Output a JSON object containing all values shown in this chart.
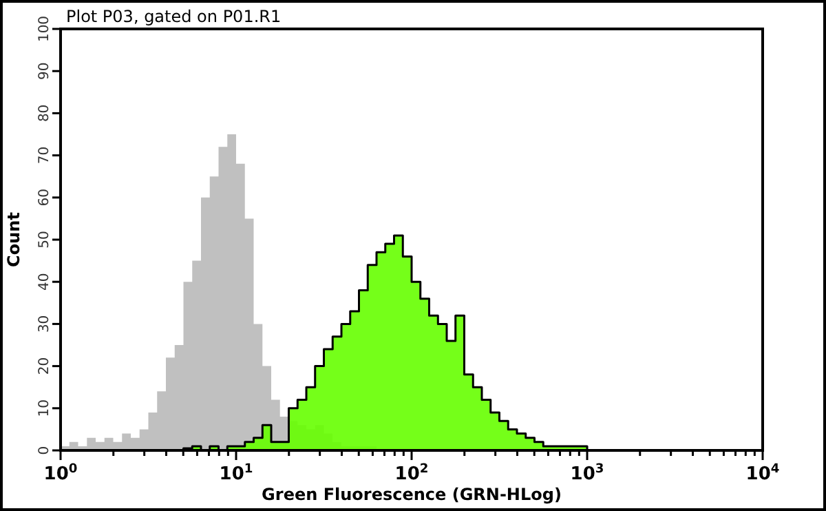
{
  "chart_data": {
    "type": "histogram",
    "title": "Plot P03, gated on P01.R1",
    "xlabel": "Green Fluorescence (GRN-HLog)",
    "ylabel": "Count",
    "log": "x",
    "bins": [
      1,
      1.122,
      1.259,
      1.413,
      1.585,
      1.778,
      1.995,
      2.239,
      2.512,
      2.818,
      3.162,
      3.548,
      3.981,
      4.467,
      5.012,
      5.623,
      6.31,
      7.079,
      7.943,
      8.913,
      10,
      11.22,
      12.59,
      14.13,
      15.85,
      17.78,
      19.95,
      22.39,
      25.12,
      28.18,
      31.62,
      35.48,
      39.81,
      44.67,
      50.12,
      56.23,
      63.1,
      70.79,
      79.43,
      89.13,
      100,
      112.2,
      125.9,
      141.3,
      158.5,
      177.8,
      199.5,
      223.9,
      251.2,
      281.8,
      316.2,
      354.8,
      398.1,
      446.7,
      501.2,
      562.3,
      631,
      707.9,
      794.3,
      891.3,
      1000,
      1122,
      1259
    ],
    "series": [
      {
        "color": "#c0c0c0",
        "values": [
          1,
          2,
          1,
          3,
          2,
          3,
          2,
          4,
          3,
          5,
          9,
          14,
          22,
          25,
          40,
          45,
          60,
          65,
          72,
          75,
          68,
          55,
          30,
          20,
          12,
          8,
          7,
          6,
          5,
          6,
          4,
          2,
          1,
          1,
          1,
          1,
          0,
          0,
          0,
          0,
          0,
          0,
          0,
          0,
          0,
          0,
          0,
          0,
          0,
          0,
          0,
          0,
          0,
          0,
          0,
          0,
          0,
          0,
          0,
          0,
          0,
          0
        ]
      },
      {
        "color": "#66ff00",
        "values": [
          0,
          0,
          0,
          0,
          0,
          0,
          0,
          0,
          0,
          0,
          0,
          0,
          0,
          0,
          0.5,
          1,
          0,
          1,
          0,
          1,
          1,
          2,
          3,
          6,
          2,
          2,
          10,
          12,
          15,
          20,
          24,
          27,
          30,
          33,
          38,
          44,
          47,
          49,
          51,
          46,
          40,
          36,
          32,
          30,
          26,
          32,
          18,
          15,
          12,
          9,
          7,
          5,
          4,
          3,
          2,
          1,
          1,
          1,
          1,
          1,
          0,
          0
        ]
      }
    ],
    "xlim": [
      1,
      10000
    ],
    "xticks": [
      {
        "value": 1,
        "label": "10$^{0}$"
      },
      {
        "value": 2,
        "label": null
      },
      {
        "value": 3,
        "label": null
      },
      {
        "value": 4,
        "label": null
      },
      {
        "value": 5,
        "label": null
      },
      {
        "value": 6,
        "label": null
      },
      {
        "value": 7,
        "label": null
      },
      {
        "value": 8,
        "label": null
      },
      {
        "value": 9,
        "label": null
      },
      {
        "value": 10,
        "label": "10$^{1}$"
      },
      {
        "value": 20,
        "label": null
      },
      {
        "value": 30,
        "label": null
      },
      {
        "value": 40,
        "label": null
      },
      {
        "value": 50,
        "label": null
      },
      {
        "value": 60,
        "label": null
      },
      {
        "value": 70,
        "label": null
      },
      {
        "value": 80,
        "label": null
      },
      {
        "value": 90,
        "label": null
      },
      {
        "value": 100,
        "label": "10$^{2}$"
      },
      {
        "value": 200,
        "label": null
      },
      {
        "value": 300,
        "label": null
      },
      {
        "value": 400,
        "label": null
      },
      {
        "value": 500,
        "label": null
      },
      {
        "value": 600,
        "label": null
      },
      {
        "value": 700,
        "label": null
      },
      {
        "value": 800,
        "label": null
      },
      {
        "value": 900,
        "label": null
      },
      {
        "value": 1000,
        "label": "10$^{3}$"
      },
      {
        "value": 2000,
        "label": null
      },
      {
        "value": 3000,
        "label": null
      },
      {
        "value": 4000,
        "label": null
      },
      {
        "value": 5000,
        "label": null
      },
      {
        "value": 6000,
        "label": null
      },
      {
        "value": 7000,
        "label": null
      },
      {
        "value": 8000,
        "label": null
      },
      {
        "value": 9000,
        "label": null
      },
      {
        "value": 10000,
        "label": "10$^{4}$"
      }
    ],
    "ylim": [
      0,
      100
    ],
    "yticks": [
      0,
      10,
      20,
      30,
      40,
      50,
      60,
      70,
      80,
      90,
      100
    ]
  }
}
